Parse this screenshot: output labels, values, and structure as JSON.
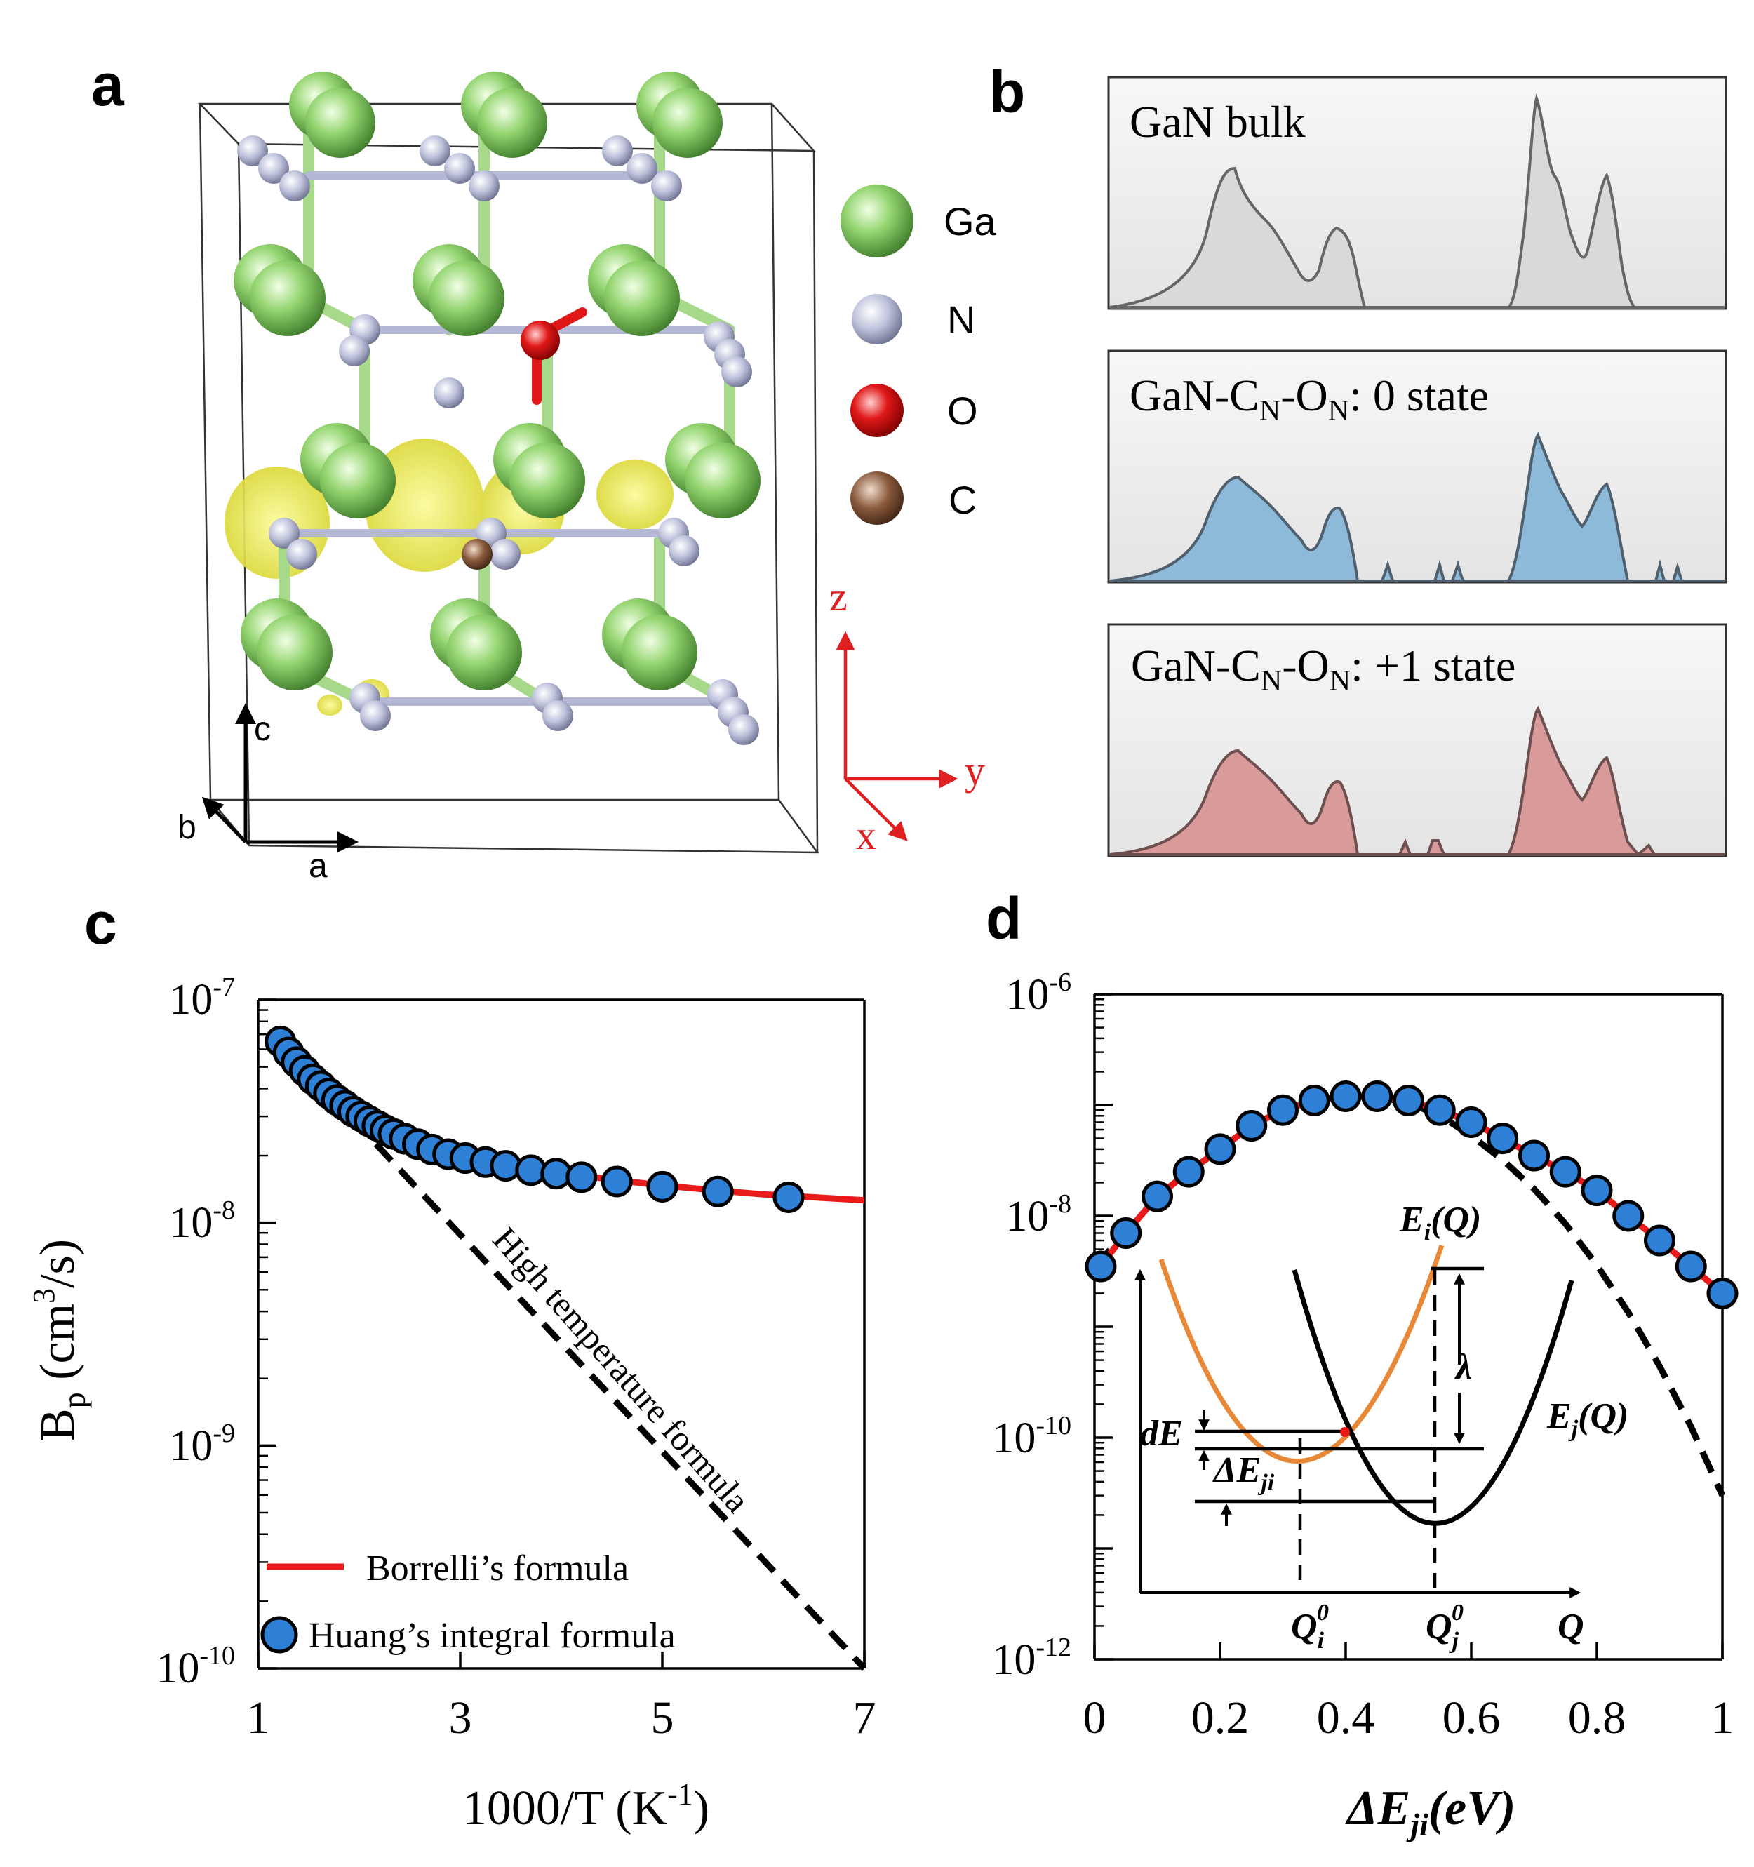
{
  "panel_labels": {
    "a": "a",
    "b": "b",
    "c": "c",
    "d": "d"
  },
  "panel_a": {
    "legend": [
      {
        "label": "Ga",
        "color": "#8fcf6e"
      },
      {
        "label": "N",
        "color": "#b8bcd8"
      },
      {
        "label": "O",
        "color": "#e01818"
      },
      {
        "label": "C",
        "color": "#8a5a3c"
      }
    ],
    "lattice_axes": {
      "c": "c",
      "b": "b",
      "a": "a"
    },
    "cartesian_axes": {
      "z": "z",
      "y": "y",
      "x": "x"
    }
  },
  "panel_b": {
    "plots": [
      {
        "title": "GaN bulk",
        "fill": "#d9d9d9",
        "stroke": "#666666"
      },
      {
        "title_parts": [
          "GaN-C",
          "N",
          "-O",
          "N",
          ": 0 state"
        ],
        "fill": "#8dbad9",
        "stroke": "#4f5f6d"
      },
      {
        "title_parts": [
          "GaN-C",
          "N",
          "-O",
          "N",
          ": +1 state"
        ],
        "fill": "#d99a9a",
        "stroke": "#6d4f4f"
      }
    ]
  },
  "chart_data": [
    {
      "type": "scatter",
      "panel": "c",
      "xlabel_parts": [
        "1000/T (K",
        "-1",
        ")"
      ],
      "ylabel_parts": [
        "B",
        "p",
        " (cm",
        "3",
        "/s)"
      ],
      "xlim": [
        1,
        7
      ],
      "ylim_log10": [
        -10,
        -7
      ],
      "xticks": [
        1,
        3,
        5,
        7
      ],
      "yticks": [
        {
          "base": "10",
          "exp": "-7"
        },
        {
          "base": "10",
          "exp": "-8"
        },
        {
          "base": "10",
          "exp": "-9"
        },
        {
          "base": "10",
          "exp": "-10"
        }
      ],
      "annotation": "High temperature formula",
      "legend": [
        "Borrelli’s formula",
        "Huang’s integral formula"
      ],
      "series": [
        {
          "name": "Huang’s integral formula",
          "x": [
            1.22,
            1.3,
            1.38,
            1.46,
            1.54,
            1.62,
            1.7,
            1.78,
            1.86,
            1.94,
            2.02,
            2.1,
            2.18,
            2.26,
            2.34,
            2.45,
            2.58,
            2.72,
            2.88,
            3.05,
            3.25,
            3.45,
            3.7,
            3.95,
            4.2,
            4.55,
            5.0,
            5.55,
            6.25
          ],
          "y": [
            6.5e-08,
            5.8e-08,
            5.25e-08,
            4.8e-08,
            4.4e-08,
            4.1e-08,
            3.8e-08,
            3.55e-08,
            3.35e-08,
            3.15e-08,
            3e-08,
            2.85e-08,
            2.72e-08,
            2.6e-08,
            2.5e-08,
            2.38e-08,
            2.25e-08,
            2.13e-08,
            2.03e-08,
            1.95e-08,
            1.87e-08,
            1.8e-08,
            1.72e-08,
            1.66e-08,
            1.6e-08,
            1.53e-08,
            1.45e-08,
            1.38e-08,
            1.3e-08
          ]
        },
        {
          "name": "Borrelli’s formula",
          "x": [
            1.22,
            1.5,
            2.0,
            2.5,
            3.0,
            3.5,
            4.0,
            4.5,
            5.0,
            5.5,
            6.0,
            6.5,
            7.0
          ],
          "y": [
            6.5e-08,
            4.6e-08,
            3.05e-08,
            2.35e-08,
            2e-08,
            1.82e-08,
            1.68e-08,
            1.56e-08,
            1.47e-08,
            1.4e-08,
            1.34e-08,
            1.3e-08,
            1.26e-08
          ]
        },
        {
          "name": "High temperature formula",
          "x": [
            1.22,
            7.0
          ],
          "y": [
            6.5e-08,
            1e-10
          ]
        }
      ]
    },
    {
      "type": "scatter",
      "panel": "d",
      "xlabel_parts": [
        "ΔE",
        "ji",
        "(eV)"
      ],
      "xlim": [
        0,
        1
      ],
      "ylim_log10": [
        -12,
        -6
      ],
      "xticks": [
        "0",
        "0.2",
        "0.4",
        "0.6",
        "0.8",
        "1"
      ],
      "yticks": [
        {
          "base": "10",
          "exp": "-6"
        },
        {
          "base": "10",
          "exp": "-8"
        },
        {
          "base": "10",
          "exp": "-10"
        },
        {
          "base": "10",
          "exp": "-12"
        }
      ],
      "series": [
        {
          "name": "Huang’s integral formula",
          "x": [
            0.01,
            0.05,
            0.1,
            0.15,
            0.2,
            0.25,
            0.3,
            0.35,
            0.4,
            0.45,
            0.5,
            0.55,
            0.6,
            0.65,
            0.7,
            0.75,
            0.8,
            0.85,
            0.9,
            0.95,
            1.0
          ],
          "y": [
            3.5e-09,
            7e-09,
            1.5e-08,
            2.5e-08,
            4e-08,
            6.5e-08,
            9e-08,
            1.1e-07,
            1.2e-07,
            1.2e-07,
            1.1e-07,
            9e-08,
            7e-08,
            5e-08,
            3.5e-08,
            2.5e-08,
            1.7e-08,
            1e-08,
            6e-09,
            3.5e-09,
            2e-09
          ]
        },
        {
          "name": "Borrelli’s formula",
          "x": [
            0.0,
            0.05,
            0.1,
            0.15,
            0.2,
            0.25,
            0.3,
            0.35,
            0.4,
            0.45,
            0.5,
            0.55,
            0.6,
            0.65,
            0.7,
            0.75,
            0.8,
            0.85,
            0.9,
            0.95,
            1.0
          ],
          "y": [
            3e-09,
            7e-09,
            1.5e-08,
            2.5e-08,
            4e-08,
            6.5e-08,
            9e-08,
            1.1e-07,
            1.2e-07,
            1.2e-07,
            1.1e-07,
            9e-08,
            7e-08,
            5e-08,
            3.5e-08,
            2.5e-08,
            1.7e-08,
            1e-08,
            6e-09,
            3.5e-09,
            2e-09
          ]
        },
        {
          "name": "High temperature formula",
          "x": [
            0.0,
            0.05,
            0.1,
            0.15,
            0.2,
            0.25,
            0.3,
            0.35,
            0.4,
            0.45,
            0.5,
            0.55,
            0.6,
            0.65,
            0.7,
            0.75,
            0.8,
            0.85,
            0.9,
            0.95,
            1.0
          ],
          "y": [
            3.5e-09,
            7e-09,
            1.5e-08,
            2.5e-08,
            4e-08,
            6.5e-08,
            9e-08,
            1.1e-07,
            1.2e-07,
            1.18e-07,
            1.05e-07,
            8e-08,
            5.3e-08,
            3.2e-08,
            1.75e-08,
            8.5e-09,
            3.6e-09,
            1.35e-09,
            4.4e-10,
            1.25e-10,
            3e-11
          ]
        }
      ],
      "inset": {
        "labels": {
          "Ei": [
            "E",
            "i",
            "(Q)"
          ],
          "Ej": [
            "E",
            "j",
            "(Q)"
          ],
          "lambda": "λ",
          "dE": "dE",
          "dEji": [
            "ΔE",
            "ji"
          ],
          "Qi0": [
            "Q",
            "i",
            "0"
          ],
          "Qj0": [
            "Q",
            "j",
            "0"
          ],
          "Q": "Q"
        }
      }
    }
  ]
}
